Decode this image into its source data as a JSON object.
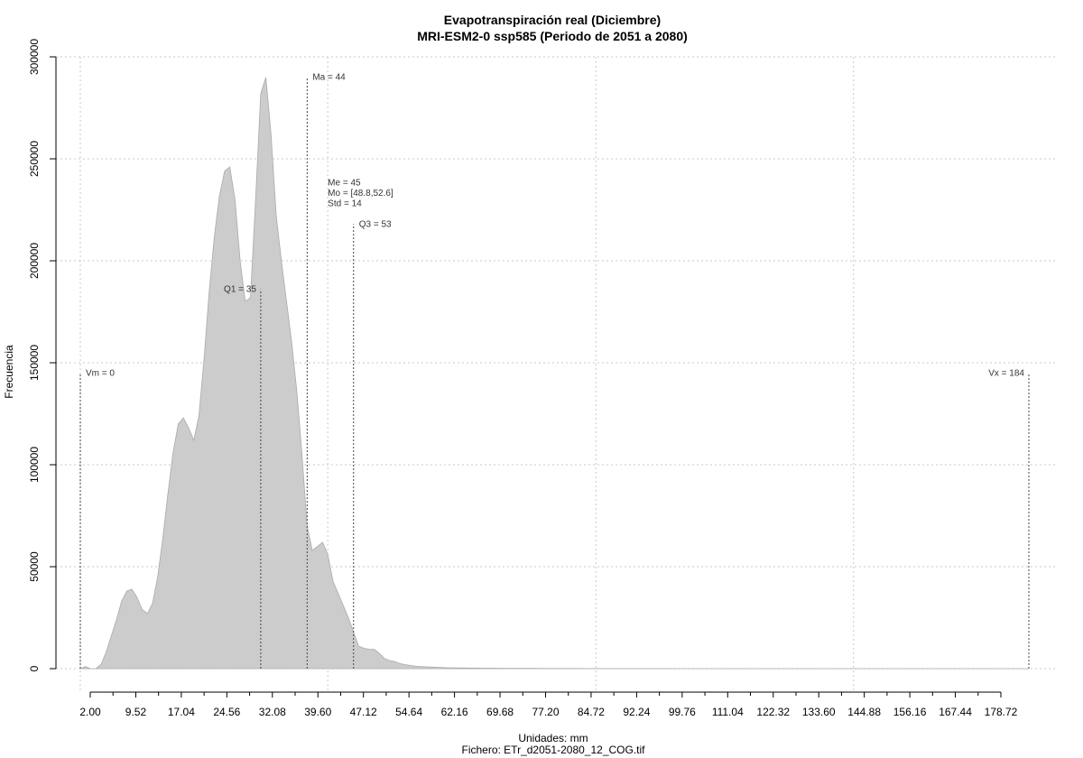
{
  "chart_data": {
    "type": "area",
    "title": "Evapotranspiración real (Diciembre)",
    "subtitle": "MRI-ESM2-0 ssp585 (Periodo de 2051 a 2080)",
    "xlabel": "Unidades: mm",
    "ylabel": "Frecuencia",
    "caption": "Fichero: ETr_d2051-2080_12_COG.tif",
    "xlim": [
      0,
      184
    ],
    "ylim": [
      0,
      300000
    ],
    "grid": true,
    "fill_color": "#cccccc",
    "x_ticks": [
      "2.00",
      "9.52",
      "17.04",
      "24.56",
      "32.08",
      "39.60",
      "47.12",
      "54.64",
      "62.16",
      "69.68",
      "77.20",
      "84.72",
      "92.24",
      "99.76",
      "111.04",
      "122.32",
      "133.60",
      "144.88",
      "156.16",
      "167.44",
      "178.72"
    ],
    "y_ticks": [
      "0",
      "50000",
      "100000",
      "150000",
      "200000",
      "250000",
      "300000"
    ],
    "x": [
      0,
      1,
      2,
      3,
      4,
      5,
      6,
      7,
      8,
      9,
      10,
      11,
      12,
      13,
      14,
      15,
      16,
      17,
      18,
      19,
      20,
      21,
      22,
      23,
      24,
      25,
      26,
      27,
      28,
      29,
      30,
      31,
      32,
      33,
      34,
      35,
      36,
      37,
      38,
      39,
      40,
      41,
      42,
      43,
      44,
      45,
      46,
      47,
      48,
      49,
      50,
      51,
      52,
      53,
      54,
      55,
      56,
      57,
      58,
      59,
      60,
      61,
      62,
      63,
      64,
      65,
      66,
      67,
      68,
      69,
      70,
      71,
      72,
      73,
      74,
      75,
      76,
      77,
      78,
      79,
      80,
      82,
      84,
      86,
      88,
      90,
      92,
      94,
      96,
      98,
      100,
      105,
      110,
      120,
      140,
      160,
      184
    ],
    "values": [
      0,
      1000,
      0,
      0,
      2000,
      8000,
      16000,
      24000,
      33000,
      38000,
      39000,
      35000,
      29000,
      27000,
      32000,
      45000,
      64000,
      86000,
      106000,
      120000,
      123000,
      118000,
      112000,
      124000,
      152000,
      185000,
      212000,
      232000,
      244000,
      246000,
      230000,
      200000,
      180000,
      182000,
      230000,
      282000,
      290000,
      262000,
      222000,
      200000,
      180000,
      160000,
      136000,
      105000,
      70000,
      58000,
      60000,
      62000,
      56000,
      43000,
      37000,
      31000,
      25000,
      18000,
      11000,
      10000,
      9500,
      9500,
      7500,
      5000,
      4000,
      3500,
      2500,
      2000,
      1600,
      1200,
      1000,
      900,
      800,
      700,
      600,
      500,
      450,
      400,
      350,
      300,
      280,
      260,
      240,
      220,
      200,
      180,
      160,
      140,
      120,
      100,
      90,
      80,
      70,
      60,
      50,
      40,
      30,
      20,
      10,
      0,
      0
    ],
    "vlines": [
      {
        "x": 0,
        "top": 145000,
        "label": "Vm = 0",
        "anchor": "right"
      },
      {
        "x": 35,
        "top": 186000,
        "label": "Q1 = 35",
        "anchor": "left"
      },
      {
        "x": 44,
        "top": 290000,
        "label": "Ma = 44",
        "anchor": "right"
      },
      {
        "x": 53,
        "top": 218000,
        "label": "Q3 = 53",
        "anchor": "right"
      },
      {
        "x": 184,
        "top": 145000,
        "label": "Vx = 184",
        "anchor": "left"
      }
    ],
    "stats_box": [
      "Me = 45",
      "Mo = [48.8,52.6]",
      "Std = 14"
    ],
    "stats_anchor": {
      "x": 48,
      "y": 237000
    }
  }
}
